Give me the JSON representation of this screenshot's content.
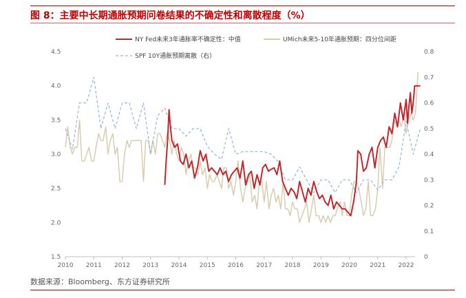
{
  "figure": {
    "title": "图 8：主要中长期通胀预期问卷结果的不确定性和离散程度（%）",
    "source": "数据来源：Bloomberg、东方证券研究所"
  },
  "colors": {
    "accent": "#c00000",
    "nyfed": "#c0272d",
    "umich": "#d8ccaf",
    "spf": "#92b4d8",
    "axis_text": "#666666"
  },
  "chart_data": {
    "type": "line",
    "x_ticks": [
      "2010",
      "2011",
      "2012",
      "2013",
      "2014",
      "2015",
      "2016",
      "2017",
      "2018",
      "2019",
      "2020",
      "2021",
      "2022"
    ],
    "y_left": {
      "lim": [
        1.5,
        4.5
      ],
      "ticks": [
        "1.5",
        "2.0",
        "2.5",
        "3.0",
        "3.5",
        "4.0",
        "4.5"
      ]
    },
    "y_right": {
      "lim": [
        0,
        0.8
      ],
      "ticks": [
        "0",
        "0.1",
        "0.2",
        "0.3",
        "0.4",
        "0.5",
        "0.6",
        "0.7",
        "0.8"
      ]
    },
    "grid": false,
    "legend_position": "top",
    "series": [
      {
        "name": "NY Fed未来3年通胀率不确定性：中值",
        "axis": "left",
        "style": "solid",
        "points": [
          [
            2013.5,
            2.55
          ],
          [
            2013.55,
            2.9
          ],
          [
            2013.6,
            3.2
          ],
          [
            2013.65,
            3.65
          ],
          [
            2013.7,
            3.4
          ],
          [
            2013.75,
            3.2
          ],
          [
            2013.85,
            3.1
          ],
          [
            2013.95,
            3.15
          ],
          [
            2014.05,
            2.9
          ],
          [
            2014.15,
            2.85
          ],
          [
            2014.25,
            3.0
          ],
          [
            2014.35,
            2.8
          ],
          [
            2014.45,
            2.9
          ],
          [
            2014.55,
            2.65
          ],
          [
            2014.65,
            2.8
          ],
          [
            2014.75,
            3.05
          ],
          [
            2014.85,
            2.9
          ],
          [
            2014.95,
            3.0
          ],
          [
            2015.05,
            2.75
          ],
          [
            2015.15,
            2.8
          ],
          [
            2015.25,
            2.75
          ],
          [
            2015.35,
            2.7
          ],
          [
            2015.45,
            2.8
          ],
          [
            2015.55,
            2.7
          ],
          [
            2015.65,
            2.75
          ],
          [
            2015.75,
            2.6
          ],
          [
            2015.85,
            2.7
          ],
          [
            2015.95,
            2.75
          ],
          [
            2016.05,
            2.8
          ],
          [
            2016.15,
            2.65
          ],
          [
            2016.25,
            2.9
          ],
          [
            2016.35,
            2.55
          ],
          [
            2016.45,
            2.7
          ],
          [
            2016.55,
            2.75
          ],
          [
            2016.65,
            2.5
          ],
          [
            2016.75,
            2.7
          ],
          [
            2016.85,
            2.55
          ],
          [
            2016.95,
            2.8
          ],
          [
            2017.05,
            2.85
          ],
          [
            2017.15,
            2.75
          ],
          [
            2017.25,
            2.78
          ],
          [
            2017.35,
            2.8
          ],
          [
            2017.45,
            2.7
          ],
          [
            2017.55,
            2.9
          ],
          [
            2017.65,
            2.6
          ],
          [
            2017.75,
            2.5
          ],
          [
            2017.85,
            2.4
          ],
          [
            2017.95,
            2.5
          ],
          [
            2018.05,
            2.45
          ],
          [
            2018.15,
            2.35
          ],
          [
            2018.25,
            2.6
          ],
          [
            2018.35,
            2.45
          ],
          [
            2018.45,
            2.3
          ],
          [
            2018.55,
            2.5
          ],
          [
            2018.65,
            2.4
          ],
          [
            2018.75,
            2.6
          ],
          [
            2018.85,
            2.45
          ],
          [
            2018.95,
            2.35
          ],
          [
            2019.05,
            2.4
          ],
          [
            2019.15,
            2.3
          ],
          [
            2019.25,
            2.25
          ],
          [
            2019.35,
            2.4
          ],
          [
            2019.45,
            2.2
          ],
          [
            2019.55,
            2.3
          ],
          [
            2019.65,
            2.25
          ],
          [
            2019.75,
            2.2
          ],
          [
            2019.85,
            2.2
          ],
          [
            2019.95,
            2.15
          ],
          [
            2020.05,
            2.1
          ],
          [
            2020.15,
            2.3
          ],
          [
            2020.25,
            2.6
          ],
          [
            2020.3,
            3.05
          ],
          [
            2020.4,
            3.0
          ],
          [
            2020.5,
            2.75
          ],
          [
            2020.6,
            2.8
          ],
          [
            2020.7,
            3.0
          ],
          [
            2020.8,
            3.1
          ],
          [
            2020.9,
            2.8
          ],
          [
            2021.0,
            3.1
          ],
          [
            2021.1,
            3.2
          ],
          [
            2021.2,
            3.25
          ],
          [
            2021.3,
            3.1
          ],
          [
            2021.4,
            3.4
          ],
          [
            2021.5,
            3.3
          ],
          [
            2021.6,
            3.6
          ],
          [
            2021.7,
            3.4
          ],
          [
            2021.8,
            3.75
          ],
          [
            2021.9,
            3.5
          ],
          [
            2022.0,
            3.8
          ],
          [
            2022.05,
            3.45
          ],
          [
            2022.1,
            3.7
          ],
          [
            2022.15,
            3.9
          ],
          [
            2022.2,
            3.6
          ],
          [
            2022.25,
            3.75
          ],
          [
            2022.3,
            4.0
          ],
          [
            2022.4,
            4.0
          ],
          [
            2022.5,
            4.0
          ]
        ]
      },
      {
        "name": "UMich未来5-10年通胀预期：四分位间距",
        "axis": "left",
        "style": "solid",
        "points": [
          [
            2010.0,
            3.1
          ],
          [
            2010.08,
            3.4
          ],
          [
            2010.17,
            3.1
          ],
          [
            2010.25,
            3.0
          ],
          [
            2010.33,
            3.1
          ],
          [
            2010.42,
            3.1
          ],
          [
            2010.5,
            3.5
          ],
          [
            2010.58,
            2.9
          ],
          [
            2010.67,
            2.9
          ],
          [
            2010.75,
            3.0
          ],
          [
            2010.83,
            3.1
          ],
          [
            2010.92,
            2.9
          ],
          [
            2011.0,
            2.9
          ],
          [
            2011.08,
            3.1
          ],
          [
            2011.17,
            3.3
          ],
          [
            2011.25,
            3.2
          ],
          [
            2011.33,
            3.2
          ],
          [
            2011.42,
            3.4
          ],
          [
            2011.5,
            3.0
          ],
          [
            2011.58,
            3.2
          ],
          [
            2011.67,
            3.3
          ],
          [
            2011.75,
            3.0
          ],
          [
            2011.83,
            3.1
          ],
          [
            2011.92,
            2.6
          ],
          [
            2012.0,
            2.6
          ],
          [
            2012.08,
            3.0
          ],
          [
            2012.17,
            3.2
          ],
          [
            2012.25,
            3.1
          ],
          [
            2012.33,
            3.2
          ],
          [
            2012.42,
            3.2
          ],
          [
            2012.5,
            3.2
          ],
          [
            2012.58,
            3.2
          ],
          [
            2012.67,
            3.2
          ],
          [
            2012.75,
            2.6
          ],
          [
            2012.83,
            3.2
          ],
          [
            2012.92,
            3.2
          ],
          [
            2013.0,
            3.0
          ],
          [
            2013.08,
            3.2
          ],
          [
            2013.17,
            3.0
          ],
          [
            2013.25,
            3.3
          ],
          [
            2013.33,
            3.3
          ],
          [
            2013.42,
            3.2
          ],
          [
            2013.5,
            3.1
          ],
          [
            2013.58,
            3.3
          ],
          [
            2013.67,
            3.2
          ],
          [
            2013.75,
            3.0
          ],
          [
            2013.83,
            3.2
          ],
          [
            2013.92,
            3.0
          ],
          [
            2014.0,
            2.9
          ],
          [
            2014.08,
            3.1
          ],
          [
            2014.17,
            3.0
          ],
          [
            2014.25,
            2.7
          ],
          [
            2014.33,
            2.9
          ],
          [
            2014.42,
            3.0
          ],
          [
            2014.5,
            2.8
          ],
          [
            2014.58,
            2.8
          ],
          [
            2014.67,
            2.7
          ],
          [
            2014.75,
            2.9
          ],
          [
            2014.83,
            2.7
          ],
          [
            2014.92,
            2.8
          ],
          [
            2015.0,
            2.5
          ],
          [
            2015.08,
            2.7
          ],
          [
            2015.17,
            2.6
          ],
          [
            2015.25,
            2.6
          ],
          [
            2015.33,
            2.7
          ],
          [
            2015.42,
            2.6
          ],
          [
            2015.5,
            2.5
          ],
          [
            2015.58,
            2.8
          ],
          [
            2015.67,
            2.8
          ],
          [
            2015.75,
            2.5
          ],
          [
            2015.83,
            2.6
          ],
          [
            2015.92,
            2.4
          ],
          [
            2016.0,
            2.6
          ],
          [
            2016.08,
            2.9
          ],
          [
            2016.17,
            2.5
          ],
          [
            2016.25,
            2.3
          ],
          [
            2016.33,
            2.5
          ],
          [
            2016.42,
            2.6
          ],
          [
            2016.5,
            2.7
          ],
          [
            2016.58,
            2.3
          ],
          [
            2016.67,
            2.4
          ],
          [
            2016.75,
            2.2
          ],
          [
            2016.83,
            2.6
          ],
          [
            2016.92,
            2.6
          ],
          [
            2017.0,
            2.3
          ],
          [
            2017.08,
            2.6
          ],
          [
            2017.17,
            2.2
          ],
          [
            2017.25,
            2.4
          ],
          [
            2017.33,
            2.5
          ],
          [
            2017.42,
            2.3
          ],
          [
            2017.5,
            2.4
          ],
          [
            2017.58,
            2.2
          ],
          [
            2017.67,
            2.6
          ],
          [
            2017.75,
            2.2
          ],
          [
            2017.83,
            2.2
          ],
          [
            2017.92,
            2.1
          ],
          [
            2018.0,
            2.3
          ],
          [
            2018.08,
            2.2
          ],
          [
            2018.17,
            2.2
          ],
          [
            2018.25,
            2.0
          ],
          [
            2018.33,
            2.1
          ],
          [
            2018.42,
            2.2
          ],
          [
            2018.5,
            2.3
          ],
          [
            2018.58,
            2.0
          ],
          [
            2018.67,
            2.2
          ],
          [
            2018.75,
            2.4
          ],
          [
            2018.83,
            2.1
          ],
          [
            2018.92,
            2.1
          ],
          [
            2019.0,
            2.0
          ],
          [
            2019.08,
            2.1
          ],
          [
            2019.17,
            2.0
          ],
          [
            2019.25,
            2.1
          ],
          [
            2019.33,
            2.0
          ],
          [
            2019.42,
            2.1
          ],
          [
            2019.5,
            2.1
          ],
          [
            2019.58,
            2.2
          ],
          [
            2019.67,
            2.3
          ],
          [
            2019.75,
            2.1
          ],
          [
            2019.83,
            2.3
          ],
          [
            2019.92,
            2.1
          ],
          [
            2020.0,
            2.1
          ],
          [
            2020.08,
            2.4
          ],
          [
            2020.17,
            2.6
          ],
          [
            2020.25,
            2.6
          ],
          [
            2020.33,
            2.5
          ],
          [
            2020.42,
            2.3
          ],
          [
            2020.5,
            2.1
          ],
          [
            2020.58,
            2.2
          ],
          [
            2020.67,
            2.6
          ],
          [
            2020.75,
            2.1
          ],
          [
            2020.83,
            2.1
          ],
          [
            2020.92,
            2.2
          ],
          [
            2021.0,
            2.5
          ],
          [
            2021.08,
            3.1
          ],
          [
            2021.17,
            2.5
          ],
          [
            2021.25,
            3.1
          ],
          [
            2021.33,
            3.1
          ],
          [
            2021.42,
            3.1
          ],
          [
            2021.5,
            3.2
          ],
          [
            2021.58,
            3.5
          ],
          [
            2021.67,
            3.4
          ],
          [
            2021.75,
            3.5
          ],
          [
            2021.83,
            3.4
          ],
          [
            2021.92,
            3.6
          ],
          [
            2022.0,
            3.3
          ],
          [
            2022.08,
            3.5
          ],
          [
            2022.17,
            3.6
          ],
          [
            2022.25,
            3.5
          ],
          [
            2022.33,
            3.6
          ],
          [
            2022.42,
            4.2
          ]
        ]
      },
      {
        "name": "SPF 10Y通胀预期离散（右）",
        "axis": "right",
        "style": "dashed",
        "points": [
          [
            2010.0,
            0.5
          ],
          [
            2010.25,
            0.42
          ],
          [
            2010.5,
            0.6
          ],
          [
            2010.75,
            0.6
          ],
          [
            2011.0,
            0.7
          ],
          [
            2011.25,
            0.5
          ],
          [
            2011.5,
            0.6
          ],
          [
            2011.75,
            0.5
          ],
          [
            2012.0,
            0.6
          ],
          [
            2012.25,
            0.6
          ],
          [
            2012.5,
            0.5
          ],
          [
            2012.75,
            0.6
          ],
          [
            2013.0,
            0.4
          ],
          [
            2013.25,
            0.55
          ],
          [
            2013.5,
            0.58
          ],
          [
            2013.75,
            0.5
          ],
          [
            2014.0,
            0.5
          ],
          [
            2014.25,
            0.47
          ],
          [
            2014.5,
            0.5
          ],
          [
            2014.75,
            0.5
          ],
          [
            2015.0,
            0.43
          ],
          [
            2015.25,
            0.4
          ],
          [
            2015.5,
            0.38
          ],
          [
            2015.75,
            0.5
          ],
          [
            2016.0,
            0.4
          ],
          [
            2016.25,
            0.41
          ],
          [
            2016.5,
            0.41
          ],
          [
            2016.75,
            0.41
          ],
          [
            2017.0,
            0.41
          ],
          [
            2017.25,
            0.4
          ],
          [
            2017.5,
            0.37
          ],
          [
            2017.75,
            0.3
          ],
          [
            2018.0,
            0.3
          ],
          [
            2018.25,
            0.35
          ],
          [
            2018.5,
            0.3
          ],
          [
            2018.75,
            0.25
          ],
          [
            2019.0,
            0.3
          ],
          [
            2019.25,
            0.3
          ],
          [
            2019.5,
            0.25
          ],
          [
            2019.75,
            0.3
          ],
          [
            2020.0,
            0.3
          ],
          [
            2020.25,
            0.25
          ],
          [
            2020.5,
            0.3
          ],
          [
            2020.75,
            0.3
          ],
          [
            2021.0,
            0.26
          ],
          [
            2021.25,
            0.3
          ],
          [
            2021.5,
            0.3
          ],
          [
            2021.75,
            0.35
          ],
          [
            2022.0,
            0.53
          ],
          [
            2022.25,
            0.4
          ],
          [
            2022.5,
            0.5
          ]
        ]
      }
    ]
  }
}
